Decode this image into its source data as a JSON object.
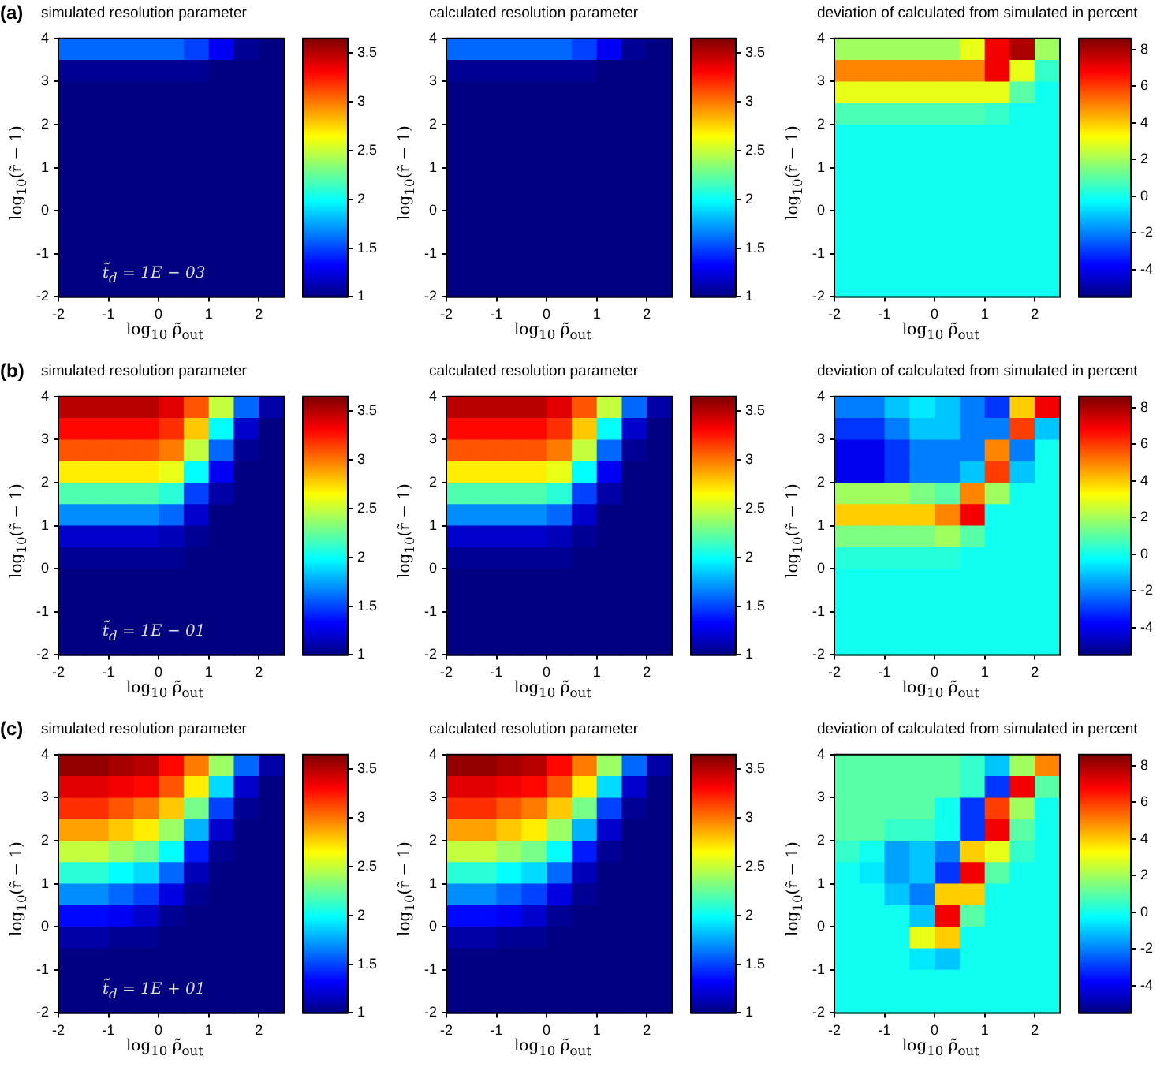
{
  "chart_data": [
    {
      "type": "heatmap",
      "title": "simulated resolution parameter",
      "xlabel": "log$_{10}$ ρ̃$_{out}$",
      "ylabel": "log$_{10}$(r̃ − 1)",
      "annotations": [
        "(a)",
        "t̃$_{d}$ = 1E − 03"
      ],
      "xlim": [
        -2,
        2.5
      ],
      "ylim": [
        -2,
        4
      ],
      "xticks": [
        -2,
        -1,
        0,
        1,
        2
      ],
      "yticks": [
        -2,
        -1,
        0,
        1,
        2,
        3,
        4
      ],
      "clim": [
        1,
        3.65
      ],
      "cticks": [
        1,
        1.5,
        2,
        2.5,
        3,
        3.5
      ],
      "cells": [
        [
          1.6,
          1.6,
          1.6,
          1.6,
          1.6,
          1.5,
          1.3,
          1.05,
          1
        ],
        [
          1.05,
          1.05,
          1.05,
          1.05,
          1.05,
          1.05,
          1,
          1,
          1
        ],
        [
          1,
          1,
          1,
          1,
          1,
          1,
          1,
          1,
          1
        ],
        [
          1,
          1,
          1,
          1,
          1,
          1,
          1,
          1,
          1
        ],
        [
          1,
          1,
          1,
          1,
          1,
          1,
          1,
          1,
          1
        ],
        [
          1,
          1,
          1,
          1,
          1,
          1,
          1,
          1,
          1
        ],
        [
          1,
          1,
          1,
          1,
          1,
          1,
          1,
          1,
          1
        ],
        [
          1,
          1,
          1,
          1,
          1,
          1,
          1,
          1,
          1
        ],
        [
          1,
          1,
          1,
          1,
          1,
          1,
          1,
          1,
          1
        ],
        [
          1,
          1,
          1,
          1,
          1,
          1,
          1,
          1,
          1
        ],
        [
          1,
          1,
          1,
          1,
          1,
          1,
          1,
          1,
          1
        ],
        [
          1,
          1,
          1,
          1,
          1,
          1,
          1,
          1,
          1
        ]
      ]
    },
    {
      "type": "heatmap",
      "title": "calculated resolution parameter",
      "xlabel": "log$_{10}$ ρ̃$_{out}$",
      "ylabel": "log$_{10}$(r̃ − 1)",
      "xlim": [
        -2,
        2.5
      ],
      "ylim": [
        -2,
        4
      ],
      "xticks": [
        -2,
        -1,
        0,
        1,
        2
      ],
      "yticks": [
        -2,
        -1,
        0,
        1,
        2,
        3,
        4
      ],
      "clim": [
        1,
        3.65
      ],
      "cticks": [
        1,
        1.5,
        2,
        2.5,
        3,
        3.5
      ],
      "cells": [
        [
          1.6,
          1.6,
          1.6,
          1.6,
          1.6,
          1.5,
          1.3,
          1.05,
          1
        ],
        [
          1.05,
          1.05,
          1.05,
          1.05,
          1.05,
          1.05,
          1,
          1,
          1
        ],
        [
          1,
          1,
          1,
          1,
          1,
          1,
          1,
          1,
          1
        ],
        [
          1,
          1,
          1,
          1,
          1,
          1,
          1,
          1,
          1
        ],
        [
          1,
          1,
          1,
          1,
          1,
          1,
          1,
          1,
          1
        ],
        [
          1,
          1,
          1,
          1,
          1,
          1,
          1,
          1,
          1
        ],
        [
          1,
          1,
          1,
          1,
          1,
          1,
          1,
          1,
          1
        ],
        [
          1,
          1,
          1,
          1,
          1,
          1,
          1,
          1,
          1
        ],
        [
          1,
          1,
          1,
          1,
          1,
          1,
          1,
          1,
          1
        ],
        [
          1,
          1,
          1,
          1,
          1,
          1,
          1,
          1,
          1
        ],
        [
          1,
          1,
          1,
          1,
          1,
          1,
          1,
          1,
          1
        ],
        [
          1,
          1,
          1,
          1,
          1,
          1,
          1,
          1,
          1
        ]
      ]
    },
    {
      "type": "heatmap",
      "title": "deviation of calculated from simulated in percent",
      "xlabel": "log$_{10}$ ρ̃$_{out}$",
      "ylabel": "log$_{10}$(r̃ − 1)",
      "xlim": [
        -2,
        2.5
      ],
      "ylim": [
        -2,
        4
      ],
      "xticks": [
        -2,
        -1,
        0,
        1,
        2
      ],
      "yticks": [
        -2,
        -1,
        0,
        1,
        2,
        3,
        4
      ],
      "clim": [
        -5.5,
        8.6
      ],
      "cticks": [
        -4,
        -2,
        0,
        2,
        4,
        6,
        8
      ],
      "cells": [
        [
          2,
          2,
          2,
          2,
          2,
          3,
          7,
          8,
          2
        ],
        [
          5,
          5,
          5,
          5,
          5,
          5,
          7,
          3,
          0.5
        ],
        [
          3,
          3,
          3,
          3,
          3,
          3,
          3,
          1,
          0
        ],
        [
          0.8,
          0.8,
          0.8,
          0.8,
          0.8,
          0.8,
          0.5,
          0,
          0
        ],
        [
          0,
          0,
          0,
          0,
          0,
          0,
          0,
          0,
          0
        ],
        [
          0,
          0,
          0,
          0,
          0,
          0,
          0,
          0,
          0
        ],
        [
          0,
          0,
          0,
          0,
          0,
          0,
          0,
          0,
          0
        ],
        [
          0,
          0,
          0,
          0,
          0,
          0,
          0,
          0,
          0
        ],
        [
          0,
          0,
          0,
          0,
          0,
          0,
          0,
          0,
          0
        ],
        [
          0,
          0,
          0,
          0,
          0,
          0,
          0,
          0,
          0
        ],
        [
          0,
          0,
          0,
          0,
          0,
          0,
          0,
          0,
          0
        ],
        [
          0,
          0,
          0,
          0,
          0,
          0,
          0,
          0,
          0
        ]
      ]
    },
    {
      "type": "heatmap",
      "title": "simulated resolution parameter",
      "xlabel": "log$_{10}$ ρ̃$_{out}$",
      "ylabel": "log$_{10}$(r̃ − 1)",
      "annotations": [
        "(b)",
        "t̃$_{d}$ = 1E − 01"
      ],
      "xlim": [
        -2,
        2.5
      ],
      "ylim": [
        -2,
        4
      ],
      "xticks": [
        -2,
        -1,
        0,
        1,
        2
      ],
      "yticks": [
        -2,
        -1,
        0,
        1,
        2,
        3,
        4
      ],
      "clim": [
        1,
        3.65
      ],
      "cticks": [
        1,
        1.5,
        2,
        2.5,
        3,
        3.5
      ],
      "cells": [
        [
          3.5,
          3.5,
          3.5,
          3.5,
          3.4,
          3.1,
          2.5,
          1.6,
          1.1
        ],
        [
          3.3,
          3.3,
          3.3,
          3.3,
          3.2,
          2.8,
          2.0,
          1.2,
          1
        ],
        [
          3.1,
          3.1,
          3.1,
          3.1,
          3.0,
          2.5,
          1.6,
          1.05,
          1
        ],
        [
          2.7,
          2.7,
          2.7,
          2.7,
          2.6,
          2.0,
          1.3,
          1,
          1
        ],
        [
          2.2,
          2.2,
          2.2,
          2.2,
          2.1,
          1.5,
          1.1,
          1,
          1
        ],
        [
          1.7,
          1.7,
          1.7,
          1.7,
          1.6,
          1.2,
          1,
          1,
          1
        ],
        [
          1.2,
          1.2,
          1.2,
          1.2,
          1.15,
          1.05,
          1,
          1,
          1
        ],
        [
          1.05,
          1.05,
          1.05,
          1.05,
          1.05,
          1,
          1,
          1,
          1
        ],
        [
          1,
          1,
          1,
          1,
          1,
          1,
          1,
          1,
          1
        ],
        [
          1,
          1,
          1,
          1,
          1,
          1,
          1,
          1,
          1
        ],
        [
          1,
          1,
          1,
          1,
          1,
          1,
          1,
          1,
          1
        ],
        [
          1,
          1,
          1,
          1,
          1,
          1,
          1,
          1,
          1
        ]
      ]
    },
    {
      "type": "heatmap",
      "title": "calculated resolution parameter",
      "xlabel": "log$_{10}$ ρ̃$_{out}$",
      "ylabel": "log$_{10}$(r̃ − 1)",
      "xlim": [
        -2,
        2.5
      ],
      "ylim": [
        -2,
        4
      ],
      "xticks": [
        -2,
        -1,
        0,
        1,
        2
      ],
      "yticks": [
        -2,
        -1,
        0,
        1,
        2,
        3,
        4
      ],
      "clim": [
        1,
        3.65
      ],
      "cticks": [
        1,
        1.5,
        2,
        2.5,
        3,
        3.5
      ],
      "cells": [
        [
          3.5,
          3.5,
          3.5,
          3.5,
          3.4,
          3.1,
          2.5,
          1.6,
          1.1
        ],
        [
          3.3,
          3.3,
          3.3,
          3.3,
          3.2,
          2.8,
          2.0,
          1.2,
          1
        ],
        [
          3.1,
          3.1,
          3.1,
          3.1,
          3.0,
          2.5,
          1.6,
          1.05,
          1
        ],
        [
          2.7,
          2.7,
          2.7,
          2.7,
          2.6,
          2.0,
          1.3,
          1,
          1
        ],
        [
          2.2,
          2.2,
          2.2,
          2.2,
          2.1,
          1.5,
          1.1,
          1,
          1
        ],
        [
          1.7,
          1.7,
          1.7,
          1.7,
          1.6,
          1.2,
          1,
          1,
          1
        ],
        [
          1.2,
          1.2,
          1.2,
          1.2,
          1.15,
          1.05,
          1,
          1,
          1
        ],
        [
          1.05,
          1.05,
          1.05,
          1.05,
          1.05,
          1,
          1,
          1,
          1
        ],
        [
          1,
          1,
          1,
          1,
          1,
          1,
          1,
          1,
          1
        ],
        [
          1,
          1,
          1,
          1,
          1,
          1,
          1,
          1,
          1
        ],
        [
          1,
          1,
          1,
          1,
          1,
          1,
          1,
          1,
          1
        ],
        [
          1,
          1,
          1,
          1,
          1,
          1,
          1,
          1,
          1
        ]
      ]
    },
    {
      "type": "heatmap",
      "title": "deviation of calculated from simulated in percent",
      "xlabel": "log$_{10}$ ρ̃$_{out}$",
      "ylabel": "log$_{10}$(r̃ − 1)",
      "xlim": [
        -2,
        2.5
      ],
      "ylim": [
        -2,
        4
      ],
      "xticks": [
        -2,
        -1,
        0,
        1,
        2
      ],
      "yticks": [
        -2,
        -1,
        0,
        1,
        2,
        3,
        4
      ],
      "clim": [
        -5.5,
        8.6
      ],
      "cticks": [
        -4,
        -2,
        0,
        2,
        4,
        6,
        8
      ],
      "cells": [
        [
          -2,
          -2,
          -1,
          -0.5,
          -1,
          -2,
          -3,
          4,
          7
        ],
        [
          -3,
          -3,
          -2,
          -1,
          -1,
          -2,
          -2,
          6,
          -1
        ],
        [
          -4,
          -4,
          -3,
          -2,
          -2,
          -2,
          5,
          -2,
          0
        ],
        [
          -4,
          -4,
          -3,
          -2,
          -2,
          -1,
          6,
          -1,
          0
        ],
        [
          2,
          2,
          2,
          1.5,
          1,
          5,
          2,
          0,
          0
        ],
        [
          4,
          4,
          4,
          4,
          5,
          7,
          0,
          0,
          0
        ],
        [
          1.5,
          1.5,
          1.5,
          1.5,
          2,
          1,
          0,
          0,
          0
        ],
        [
          0.3,
          0.3,
          0.3,
          0.3,
          0.3,
          0,
          0,
          0,
          0
        ],
        [
          0,
          0,
          0,
          0,
          0,
          0,
          0,
          0,
          0
        ],
        [
          0,
          0,
          0,
          0,
          0,
          0,
          0,
          0,
          0
        ],
        [
          0,
          0,
          0,
          0,
          0,
          0,
          0,
          0,
          0
        ],
        [
          0,
          0,
          0,
          0,
          0,
          0,
          0,
          0,
          0
        ]
      ]
    },
    {
      "type": "heatmap",
      "title": "simulated resolution parameter",
      "xlabel": "log$_{10}$ ρ̃$_{out}$",
      "ylabel": "log$_{10}$(r̃ − 1)",
      "annotations": [
        "(c)",
        "t̃$_{d}$ = 1E + 01"
      ],
      "xlim": [
        -2,
        2.5
      ],
      "ylim": [
        -2,
        4
      ],
      "xticks": [
        -2,
        -1,
        0,
        1,
        2
      ],
      "yticks": [
        -2,
        -1,
        0,
        1,
        2,
        3,
        4
      ],
      "clim": [
        1,
        3.65
      ],
      "cticks": [
        1,
        1.5,
        2,
        2.5,
        3,
        3.5
      ],
      "cells": [
        [
          3.6,
          3.6,
          3.55,
          3.5,
          3.3,
          3.0,
          2.4,
          1.6,
          1.1
        ],
        [
          3.4,
          3.4,
          3.35,
          3.3,
          3.1,
          2.7,
          1.9,
          1.2,
          1
        ],
        [
          3.2,
          3.2,
          3.1,
          3.0,
          2.8,
          2.3,
          1.5,
          1.05,
          1
        ],
        [
          2.9,
          2.9,
          2.8,
          2.7,
          2.4,
          1.8,
          1.2,
          1,
          1
        ],
        [
          2.5,
          2.5,
          2.4,
          2.3,
          2.0,
          1.4,
          1.05,
          1,
          1
        ],
        [
          2.1,
          2.1,
          2.0,
          1.9,
          1.6,
          1.15,
          1,
          1,
          1
        ],
        [
          1.7,
          1.7,
          1.6,
          1.5,
          1.25,
          1.05,
          1,
          1,
          1
        ],
        [
          1.35,
          1.35,
          1.3,
          1.2,
          1.05,
          1,
          1,
          1,
          1
        ],
        [
          1.1,
          1.1,
          1.05,
          1.05,
          1,
          1,
          1,
          1,
          1
        ],
        [
          1,
          1,
          1,
          1,
          1,
          1,
          1,
          1,
          1
        ],
        [
          1,
          1,
          1,
          1,
          1,
          1,
          1,
          1,
          1
        ],
        [
          1,
          1,
          1,
          1,
          1,
          1,
          1,
          1,
          1
        ]
      ]
    },
    {
      "type": "heatmap",
      "title": "calculated resolution parameter",
      "xlabel": "log$_{10}$ ρ̃$_{out}$",
      "ylabel": "log$_{10}$(r̃ − 1)",
      "xlim": [
        -2,
        2.5
      ],
      "ylim": [
        -2,
        4
      ],
      "xticks": [
        -2,
        -1,
        0,
        1,
        2
      ],
      "yticks": [
        -2,
        -1,
        0,
        1,
        2,
        3,
        4
      ],
      "clim": [
        1,
        3.65
      ],
      "cticks": [
        1,
        1.5,
        2,
        2.5,
        3,
        3.5
      ],
      "cells": [
        [
          3.6,
          3.6,
          3.55,
          3.5,
          3.3,
          3.0,
          2.4,
          1.6,
          1.1
        ],
        [
          3.4,
          3.4,
          3.35,
          3.3,
          3.1,
          2.7,
          1.9,
          1.2,
          1
        ],
        [
          3.2,
          3.2,
          3.1,
          3.0,
          2.8,
          2.3,
          1.5,
          1.05,
          1
        ],
        [
          2.9,
          2.9,
          2.8,
          2.7,
          2.4,
          1.8,
          1.2,
          1,
          1
        ],
        [
          2.5,
          2.5,
          2.4,
          2.3,
          2.0,
          1.4,
          1.05,
          1,
          1
        ],
        [
          2.1,
          2.1,
          2.0,
          1.9,
          1.6,
          1.15,
          1,
          1,
          1
        ],
        [
          1.7,
          1.7,
          1.6,
          1.5,
          1.25,
          1.05,
          1,
          1,
          1
        ],
        [
          1.35,
          1.35,
          1.3,
          1.2,
          1.05,
          1,
          1,
          1,
          1
        ],
        [
          1.1,
          1.1,
          1.05,
          1.05,
          1,
          1,
          1,
          1,
          1
        ],
        [
          1,
          1,
          1,
          1,
          1,
          1,
          1,
          1,
          1
        ],
        [
          1,
          1,
          1,
          1,
          1,
          1,
          1,
          1,
          1
        ],
        [
          1,
          1,
          1,
          1,
          1,
          1,
          1,
          1,
          1
        ]
      ]
    },
    {
      "type": "heatmap",
      "title": "deviation of calculated from simulated in percent",
      "xlabel": "log$_{10}$ ρ̃$_{out}$",
      "ylabel": "log$_{10}$(r̃ − 1)",
      "xlim": [
        -2,
        2.5
      ],
      "ylim": [
        -2,
        4
      ],
      "xticks": [
        -2,
        -1,
        0,
        1,
        2
      ],
      "yticks": [
        -2,
        -1,
        0,
        1,
        2,
        3,
        4
      ],
      "clim": [
        -5.5,
        8.6
      ],
      "cticks": [
        -4,
        -2,
        0,
        2,
        4,
        6,
        8
      ],
      "cells": [
        [
          1,
          1,
          1,
          1,
          1,
          0.5,
          -1,
          2,
          5
        ],
        [
          1,
          1,
          1,
          1,
          1,
          0.5,
          -3,
          7,
          1
        ],
        [
          1,
          1,
          1,
          1,
          0,
          -3,
          6,
          2,
          0
        ],
        [
          1,
          1,
          0.5,
          0.5,
          0,
          -3,
          7,
          1,
          0
        ],
        [
          0.5,
          0,
          -1.5,
          -1,
          -2,
          4,
          3,
          0.5,
          0
        ],
        [
          0,
          -0.5,
          -1.5,
          -1,
          -3,
          7,
          1,
          0,
          0
        ],
        [
          0,
          0,
          -1,
          -2,
          4,
          4,
          0,
          0,
          0
        ],
        [
          0,
          0,
          0,
          -1,
          7,
          1,
          0,
          0,
          0
        ],
        [
          0,
          0,
          0,
          3,
          4,
          0,
          0,
          0,
          0
        ],
        [
          0,
          0,
          0,
          -0.5,
          -1,
          0,
          0,
          0,
          0
        ],
        [
          0,
          0,
          0,
          0,
          0,
          0,
          0,
          0,
          0
        ],
        [
          0,
          0,
          0,
          0,
          0,
          0,
          0,
          0,
          0
        ]
      ]
    }
  ]
}
